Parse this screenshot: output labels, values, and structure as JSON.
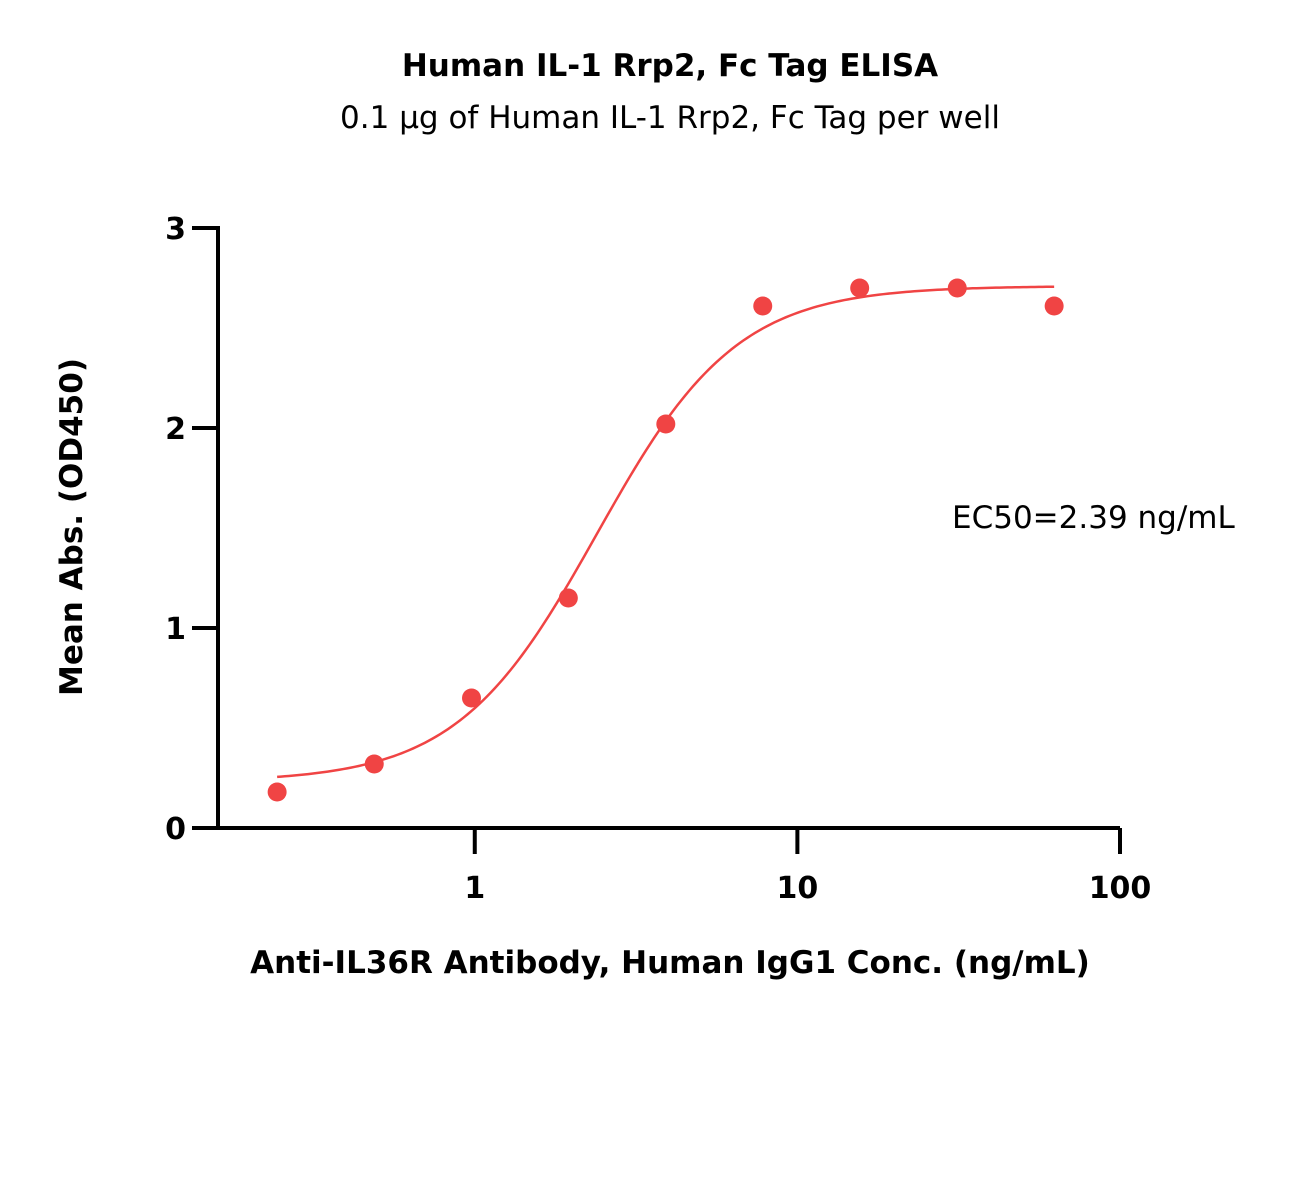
{
  "chart_data": {
    "type": "scatter",
    "title": "Human IL-1 Rrp2, Fc Tag ELISA",
    "subtitle": "0.1 µg of Human IL-1 Rrp2, Fc Tag per well",
    "xlabel": "Anti-IL36R Antibody, Human IgG1 Conc. (ng/mL)",
    "ylabel": "Mean Abs. (OD450)",
    "x_scale": "log",
    "xlim": [
      0.16,
      100
    ],
    "ylim": [
      0,
      3
    ],
    "x_ticks": [
      1,
      10,
      100
    ],
    "x_tick_labels": [
      "1",
      "10",
      "100"
    ],
    "y_ticks": [
      0,
      1,
      2,
      3
    ],
    "y_tick_labels": [
      "0",
      "1",
      "2",
      "3"
    ],
    "grid": false,
    "colors": {
      "series": "#f04444",
      "axis": "#000000"
    },
    "series": [
      {
        "x": [
          0.244,
          0.488,
          0.977,
          1.95,
          3.91,
          7.81,
          15.6,
          31.3,
          62.5
        ],
        "y": [
          0.18,
          0.32,
          0.65,
          1.15,
          2.02,
          2.61,
          2.7,
          2.7,
          2.61
        ]
      }
    ],
    "fit": {
      "model": "4PL",
      "bottom": 0.23,
      "top": 2.71,
      "ec50": 2.39,
      "hill": 2.0,
      "x_range": [
        0.244,
        62.5
      ]
    },
    "annotation": "EC50=2.39 ng/mL"
  }
}
